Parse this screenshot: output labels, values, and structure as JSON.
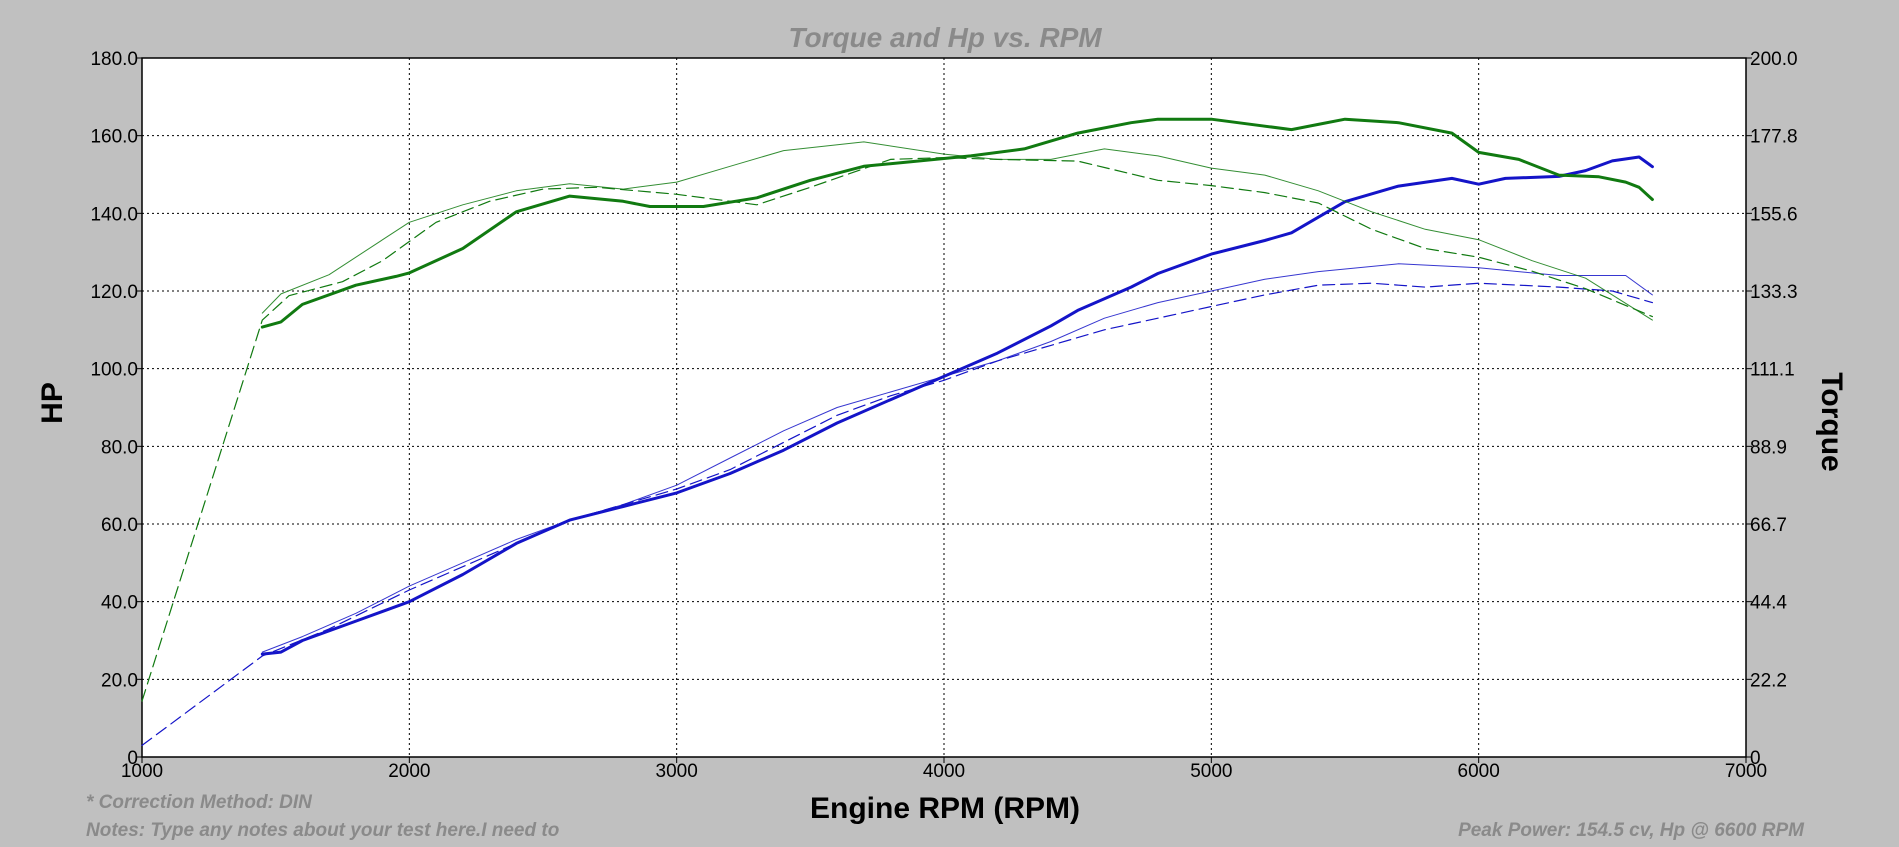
{
  "chart_data": {
    "type": "line",
    "title": "Torque and Hp vs. RPM",
    "xlabel": "Engine RPM (RPM)",
    "ylabel_left": "HP",
    "ylabel_right": "Torque",
    "xlim": [
      1000,
      7000
    ],
    "xticks": [
      "1000",
      "2000",
      "3000",
      "4000",
      "5000",
      "6000",
      "7000"
    ],
    "ylim_left": [
      0,
      180
    ],
    "yticks_left": [
      "0",
      "20.0",
      "40.0",
      "60.0",
      "80.0",
      "100.0",
      "120.0",
      "140.0",
      "160.0",
      "180.0"
    ],
    "ylim_right": [
      0,
      200
    ],
    "yticks_right": [
      "0",
      "22.2",
      "44.4",
      "66.7",
      "88.9",
      "111.1",
      "133.3",
      "155.6",
      "177.8",
      "200.0"
    ],
    "grid": true,
    "colors": {
      "hp": "#1414c8",
      "torque": "#117a11",
      "background": "#c0c0c0",
      "plot": "#ffffff"
    },
    "series": [
      {
        "axis": "left",
        "kind": "hp",
        "style": "bold",
        "points": [
          [
            1450,
            26.5
          ],
          [
            1520,
            27
          ],
          [
            1600,
            30
          ],
          [
            1800,
            35
          ],
          [
            2000,
            40
          ],
          [
            2200,
            47
          ],
          [
            2400,
            55
          ],
          [
            2600,
            61
          ],
          [
            2800,
            64.5
          ],
          [
            3000,
            68
          ],
          [
            3200,
            73
          ],
          [
            3400,
            79
          ],
          [
            3600,
            86
          ],
          [
            3800,
            92
          ],
          [
            4000,
            98
          ],
          [
            4200,
            104
          ],
          [
            4400,
            111
          ],
          [
            4500,
            115
          ],
          [
            4700,
            121
          ],
          [
            4800,
            124.5
          ],
          [
            5000,
            129.5
          ],
          [
            5200,
            133
          ],
          [
            5300,
            135
          ],
          [
            5400,
            139
          ],
          [
            5500,
            143
          ],
          [
            5700,
            147
          ],
          [
            5900,
            149
          ],
          [
            6000,
            147.5
          ],
          [
            6100,
            149
          ],
          [
            6300,
            149.5
          ],
          [
            6400,
            151
          ],
          [
            6500,
            153.5
          ],
          [
            6600,
            154.5
          ],
          [
            6650,
            152
          ]
        ]
      },
      {
        "axis": "left",
        "kind": "hp",
        "style": "thin",
        "points": [
          [
            1450,
            27
          ],
          [
            1600,
            31
          ],
          [
            1800,
            37
          ],
          [
            2000,
            44
          ],
          [
            2200,
            50
          ],
          [
            2400,
            56
          ],
          [
            2600,
            61
          ],
          [
            2800,
            65
          ],
          [
            3000,
            70
          ],
          [
            3200,
            77
          ],
          [
            3400,
            84
          ],
          [
            3600,
            90
          ],
          [
            3800,
            94
          ],
          [
            4000,
            98
          ],
          [
            4200,
            102
          ],
          [
            4400,
            107
          ],
          [
            4600,
            113
          ],
          [
            4800,
            117
          ],
          [
            5000,
            120
          ],
          [
            5200,
            123
          ],
          [
            5400,
            125
          ],
          [
            5700,
            127
          ],
          [
            6000,
            126
          ],
          [
            6300,
            124
          ],
          [
            6550,
            124
          ],
          [
            6650,
            119
          ]
        ]
      },
      {
        "axis": "left",
        "kind": "hp",
        "style": "dashed",
        "points": [
          [
            1000,
            3
          ],
          [
            1450,
            26
          ],
          [
            1700,
            33
          ],
          [
            2000,
            43
          ],
          [
            2200,
            49
          ],
          [
            2400,
            55
          ],
          [
            2600,
            61
          ],
          [
            2800,
            65
          ],
          [
            3000,
            69
          ],
          [
            3200,
            74
          ],
          [
            3400,
            81
          ],
          [
            3600,
            88
          ],
          [
            3800,
            93
          ],
          [
            4000,
            97
          ],
          [
            4200,
            102
          ],
          [
            4400,
            106
          ],
          [
            4600,
            110
          ],
          [
            4800,
            113
          ],
          [
            5000,
            116
          ],
          [
            5200,
            119
          ],
          [
            5400,
            121.5
          ],
          [
            5600,
            122
          ],
          [
            5800,
            121
          ],
          [
            6000,
            122
          ],
          [
            6300,
            121
          ],
          [
            6500,
            120
          ],
          [
            6650,
            117
          ]
        ]
      },
      {
        "axis": "right",
        "kind": "torque",
        "style": "bold",
        "points": [
          [
            1450,
            123
          ],
          [
            1520,
            124.5
          ],
          [
            1600,
            129.5
          ],
          [
            1800,
            135
          ],
          [
            1950,
            137.5
          ],
          [
            2000,
            138.5
          ],
          [
            2200,
            145.5
          ],
          [
            2400,
            156
          ],
          [
            2600,
            160.5
          ],
          [
            2800,
            159
          ],
          [
            2900,
            157.5
          ],
          [
            3100,
            157.5
          ],
          [
            3300,
            160
          ],
          [
            3500,
            165
          ],
          [
            3700,
            169
          ],
          [
            3900,
            170.5
          ],
          [
            4100,
            172
          ],
          [
            4300,
            174
          ],
          [
            4500,
            178.5
          ],
          [
            4700,
            181.5
          ],
          [
            4800,
            182.5
          ],
          [
            5000,
            182.5
          ],
          [
            5100,
            181.5
          ],
          [
            5300,
            179.5
          ],
          [
            5400,
            181
          ],
          [
            5500,
            182.5
          ],
          [
            5700,
            181.5
          ],
          [
            5900,
            178.5
          ],
          [
            6000,
            173
          ],
          [
            6150,
            171
          ],
          [
            6300,
            166.5
          ],
          [
            6450,
            166
          ],
          [
            6550,
            164.5
          ],
          [
            6600,
            163
          ],
          [
            6650,
            159.5
          ]
        ]
      },
      {
        "axis": "right",
        "kind": "torque",
        "style": "thin",
        "points": [
          [
            1450,
            127
          ],
          [
            1520,
            132.5
          ],
          [
            1700,
            138
          ],
          [
            1900,
            148
          ],
          [
            2000,
            153
          ],
          [
            2200,
            158
          ],
          [
            2400,
            162
          ],
          [
            2600,
            164
          ],
          [
            2800,
            162.5
          ],
          [
            3000,
            164.5
          ],
          [
            3200,
            169
          ],
          [
            3400,
            173.5
          ],
          [
            3700,
            176
          ],
          [
            4000,
            172.5
          ],
          [
            4200,
            171
          ],
          [
            4400,
            171
          ],
          [
            4600,
            174
          ],
          [
            4800,
            172
          ],
          [
            5000,
            168.5
          ],
          [
            5200,
            166.5
          ],
          [
            5400,
            162
          ],
          [
            5600,
            156
          ],
          [
            5800,
            151
          ],
          [
            6000,
            148
          ],
          [
            6200,
            142
          ],
          [
            6400,
            137
          ],
          [
            6650,
            125
          ]
        ]
      },
      {
        "axis": "right",
        "kind": "torque",
        "style": "dashed",
        "points": [
          [
            1000,
            16
          ],
          [
            1450,
            125
          ],
          [
            1550,
            132
          ],
          [
            1750,
            136
          ],
          [
            1900,
            142
          ],
          [
            2100,
            153
          ],
          [
            2300,
            159
          ],
          [
            2500,
            162.5
          ],
          [
            2700,
            163
          ],
          [
            3000,
            161
          ],
          [
            3300,
            158
          ],
          [
            3500,
            163
          ],
          [
            3800,
            171
          ],
          [
            4000,
            171.5
          ],
          [
            4200,
            171
          ],
          [
            4500,
            170.5
          ],
          [
            4800,
            165
          ],
          [
            5000,
            163.5
          ],
          [
            5200,
            161.5
          ],
          [
            5400,
            158.5
          ],
          [
            5600,
            151
          ],
          [
            5800,
            145.5
          ],
          [
            6000,
            143
          ],
          [
            6200,
            139
          ],
          [
            6400,
            134
          ],
          [
            6650,
            126
          ]
        ]
      }
    ]
  },
  "notes": {
    "correction": "* Correction Method: DIN",
    "notes_text": "Notes: Type any notes about your test here.I need to",
    "peak_power": "Peak Power: 154.5 cv, Hp @ 6600 RPM"
  }
}
